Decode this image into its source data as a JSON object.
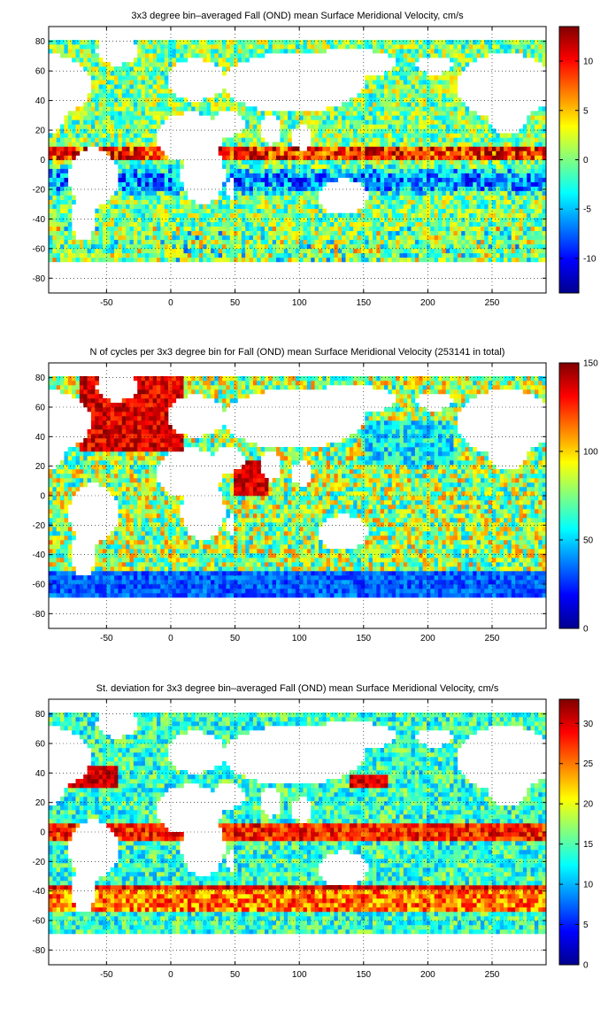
{
  "colormap": [
    "#00008f",
    "#0000ff",
    "#0080ff",
    "#00ffff",
    "#80ff80",
    "#ffff00",
    "#ff8000",
    "#ff0000",
    "#800000"
  ],
  "land_color": "#ffffff",
  "chart_data": [
    {
      "type": "heatmap",
      "title": "3x3 degree bin–averaged Fall (OND) mean Surface Meridional Velocity, cm/s",
      "xlim": [
        -95,
        292
      ],
      "ylim": [
        -90,
        90
      ],
      "xticks": [
        -50,
        0,
        50,
        100,
        150,
        200,
        250
      ],
      "yticks": [
        -80,
        -60,
        -40,
        -20,
        0,
        20,
        40,
        60,
        80
      ],
      "grid": true,
      "colorbar": {
        "clim": [
          -13.5,
          13.5
        ],
        "ticks": [
          -10,
          -5,
          0,
          5,
          10
        ]
      },
      "bin_size_deg": 3,
      "field": "meridional_velocity",
      "values_summary": "Strong northward flow (red, ~+10 cm/s) just north of equator in Atlantic and Pacific; southward flow (blue, ~-10 cm/s) in subtropical South Atlantic and Pacific."
    },
    {
      "type": "heatmap",
      "title": "N of cycles per 3x3 degree bin for Fall (OND) mean Surface Meridional Velocity (253141 in total)",
      "xlim": [
        -95,
        292
      ],
      "ylim": [
        -90,
        90
      ],
      "xticks": [
        -50,
        0,
        50,
        100,
        150,
        200,
        250
      ],
      "yticks": [
        -80,
        -60,
        -40,
        -20,
        0,
        20,
        40,
        60,
        80
      ],
      "grid": true,
      "colorbar": {
        "clim": [
          0,
          150
        ],
        "ticks": [
          0,
          50,
          100,
          150
        ]
      },
      "bin_size_deg": 3,
      "field": "cycle_count",
      "values_summary": "High counts (dark red, >130) in North Atlantic and Arabian Sea; low counts (blue, <30) in Southern Ocean near -60 latitude."
    },
    {
      "type": "heatmap",
      "title": "St. deviation for 3x3 degree bin–averaged Fall (OND) mean Surface Meridional Velocity, cm/s",
      "xlim": [
        -95,
        292
      ],
      "ylim": [
        -90,
        90
      ],
      "xticks": [
        -50,
        0,
        50,
        100,
        150,
        200,
        250
      ],
      "yticks": [
        -80,
        -60,
        -40,
        -20,
        0,
        20,
        40,
        60,
        80
      ],
      "grid": true,
      "colorbar": {
        "clim": [
          0,
          33
        ],
        "ticks": [
          0,
          5,
          10,
          15,
          20,
          25,
          30
        ]
      },
      "bin_size_deg": 3,
      "field": "std_dev",
      "values_summary": "High variability (dark red, ~30) along Gulf Stream, Kuroshio, Agulhas, Antarctic Circumpolar Current and equatorial band; low (cyan/blue, ~10) in subtropical gyres."
    }
  ]
}
